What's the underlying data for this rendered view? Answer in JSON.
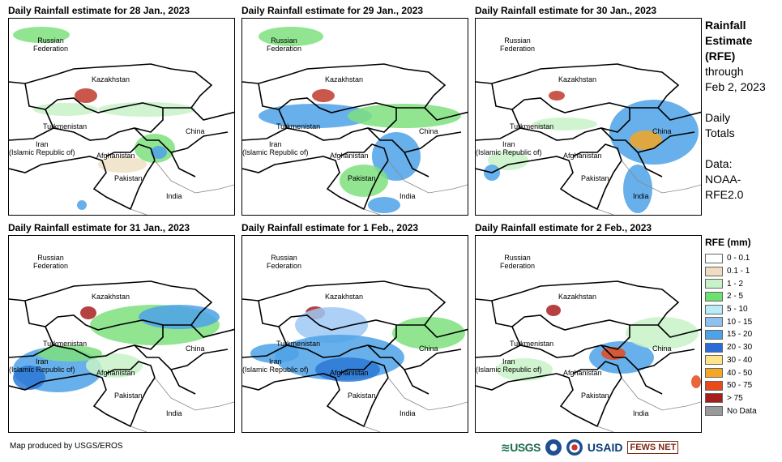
{
  "panels": [
    {
      "title": "Daily Rainfall estimate for 28 Jan., 2023",
      "rain": [
        {
          "cx": 40,
          "cy": 20,
          "rx": 35,
          "ry": 10,
          "c": "#7ee07e"
        },
        {
          "cx": 95,
          "cy": 95,
          "rx": 14,
          "ry": 9,
          "c": "#c0392b"
        },
        {
          "cx": 70,
          "cy": 112,
          "rx": 40,
          "ry": 8,
          "c": "#c8f2c8"
        },
        {
          "cx": 170,
          "cy": 112,
          "rx": 60,
          "ry": 9,
          "c": "#c8f2c8"
        },
        {
          "cx": 180,
          "cy": 160,
          "rx": 25,
          "ry": 18,
          "c": "#7ee07e"
        },
        {
          "cx": 185,
          "cy": 165,
          "rx": 10,
          "ry": 8,
          "c": "#4ea2e8"
        },
        {
          "cx": 140,
          "cy": 180,
          "rx": 30,
          "ry": 10,
          "c": "#f0e0c4"
        },
        {
          "cx": 90,
          "cy": 230,
          "rx": 6,
          "ry": 6,
          "c": "#4ea2e8"
        }
      ]
    },
    {
      "title": "Daily Rainfall estimate for 29 Jan., 2023",
      "rain": [
        {
          "cx": 60,
          "cy": 22,
          "rx": 40,
          "ry": 12,
          "c": "#7ee07e"
        },
        {
          "cx": 100,
          "cy": 95,
          "rx": 14,
          "ry": 8,
          "c": "#c0392b"
        },
        {
          "cx": 90,
          "cy": 120,
          "rx": 70,
          "ry": 15,
          "c": "#4ea2e8"
        },
        {
          "cx": 200,
          "cy": 120,
          "rx": 70,
          "ry": 15,
          "c": "#7ee07e"
        },
        {
          "cx": 190,
          "cy": 170,
          "rx": 30,
          "ry": 30,
          "c": "#4ea2e8"
        },
        {
          "cx": 150,
          "cy": 200,
          "rx": 30,
          "ry": 20,
          "c": "#7ee07e"
        },
        {
          "cx": 175,
          "cy": 230,
          "rx": 20,
          "ry": 10,
          "c": "#4ea2e8"
        }
      ]
    },
    {
      "title": "Daily Rainfall estimate for 30 Jan., 2023",
      "rain": [
        {
          "cx": 100,
          "cy": 95,
          "rx": 10,
          "ry": 6,
          "c": "#c0392b"
        },
        {
          "cx": 110,
          "cy": 130,
          "rx": 40,
          "ry": 8,
          "c": "#c8f2c8"
        },
        {
          "cx": 220,
          "cy": 140,
          "rx": 55,
          "ry": 40,
          "c": "#4ea2e8"
        },
        {
          "cx": 210,
          "cy": 150,
          "rx": 20,
          "ry": 12,
          "c": "#f5a623"
        },
        {
          "cx": 200,
          "cy": 210,
          "rx": 18,
          "ry": 30,
          "c": "#4ea2e8"
        },
        {
          "cx": 40,
          "cy": 175,
          "rx": 25,
          "ry": 12,
          "c": "#c8f2c8"
        },
        {
          "cx": 20,
          "cy": 190,
          "rx": 10,
          "ry": 10,
          "c": "#4ea2e8"
        }
      ]
    },
    {
      "title": "Daily Rainfall estimate for 31 Jan., 2023",
      "rain": [
        {
          "cx": 98,
          "cy": 95,
          "rx": 10,
          "ry": 8,
          "c": "#a82020"
        },
        {
          "cx": 60,
          "cy": 165,
          "rx": 55,
          "ry": 28,
          "c": "#4ea2e8"
        },
        {
          "cx": 25,
          "cy": 175,
          "rx": 20,
          "ry": 15,
          "c": "#2c78d6"
        },
        {
          "cx": 180,
          "cy": 110,
          "rx": 80,
          "ry": 25,
          "c": "#7ee07e"
        },
        {
          "cx": 210,
          "cy": 100,
          "rx": 50,
          "ry": 15,
          "c": "#4ea2e8"
        },
        {
          "cx": 130,
          "cy": 160,
          "rx": 35,
          "ry": 15,
          "c": "#c8f2c8"
        },
        {
          "cx": 75,
          "cy": 145,
          "rx": 40,
          "ry": 10,
          "c": "#7ee07e"
        }
      ]
    },
    {
      "title": "Daily Rainfall estimate for 1 Feb., 2023",
      "rain": [
        {
          "cx": 90,
          "cy": 95,
          "rx": 12,
          "ry": 8,
          "c": "#a82020"
        },
        {
          "cx": 110,
          "cy": 110,
          "rx": 45,
          "ry": 22,
          "c": "#9dc8f5"
        },
        {
          "cx": 120,
          "cy": 150,
          "rx": 80,
          "ry": 28,
          "c": "#4ea2e8"
        },
        {
          "cx": 130,
          "cy": 165,
          "rx": 40,
          "ry": 15,
          "c": "#2c78d6"
        },
        {
          "cx": 230,
          "cy": 120,
          "rx": 45,
          "ry": 20,
          "c": "#7ee07e"
        },
        {
          "cx": 40,
          "cy": 145,
          "rx": 30,
          "ry": 12,
          "c": "#4ea2e8"
        }
      ]
    },
    {
      "title": "Daily Rainfall estimate for 2 Feb., 2023",
      "rain": [
        {
          "cx": 96,
          "cy": 92,
          "rx": 9,
          "ry": 7,
          "c": "#a82020"
        },
        {
          "cx": 180,
          "cy": 150,
          "rx": 40,
          "ry": 20,
          "c": "#4ea2e8"
        },
        {
          "cx": 170,
          "cy": 145,
          "rx": 15,
          "ry": 8,
          "c": "#e84a1a"
        },
        {
          "cx": 230,
          "cy": 120,
          "rx": 45,
          "ry": 20,
          "c": "#c8f2c8"
        },
        {
          "cx": 60,
          "cy": 165,
          "rx": 35,
          "ry": 14,
          "c": "#c8f2c8"
        },
        {
          "cx": 272,
          "cy": 180,
          "rx": 6,
          "ry": 8,
          "c": "#e84a1a"
        }
      ]
    }
  ],
  "map_labels": {
    "russia": "Russian\nFederation",
    "kazakhstan": "Kazakhstan",
    "turkmenistan": "Turkmenistan",
    "china": "China",
    "iran": "Iran\n(Islamic Republic of)",
    "afghanistan": "Afghanistan",
    "pakistan": "Pakistan",
    "india": "India"
  },
  "sidebar": {
    "title_line1": "Rainfall",
    "title_line2": "Estimate",
    "title_line3": "(RFE)",
    "through": "through",
    "date": "Feb 2, 2023",
    "daily": "Daily",
    "totals": "Totals",
    "data_label": "Data:",
    "data_src1": "NOAA-",
    "data_src2": "RFE2.0"
  },
  "legend": {
    "title": "RFE (mm)",
    "items": [
      {
        "label": "0 - 0.1",
        "color": "#ffffff"
      },
      {
        "label": "0.1 - 1",
        "color": "#f0dcc0"
      },
      {
        "label": "1 - 2",
        "color": "#c8f2c8"
      },
      {
        "label": "2 - 5",
        "color": "#6ee06e"
      },
      {
        "label": "5 - 10",
        "color": "#b8ecf8"
      },
      {
        "label": "10 - 15",
        "color": "#8ec0f0"
      },
      {
        "label": "15 - 20",
        "color": "#4ea2e8"
      },
      {
        "label": "20 - 30",
        "color": "#2c6cd8"
      },
      {
        "label": "30 - 40",
        "color": "#fce48a"
      },
      {
        "label": "40 - 50",
        "color": "#f5a623"
      },
      {
        "label": "50 - 75",
        "color": "#e84a1a"
      },
      {
        "label": "> 75",
        "color": "#a81c1c"
      },
      {
        "label": "No Data",
        "color": "#999999"
      }
    ]
  },
  "footer": {
    "credit": "Map produced by USGS/EROS",
    "logo_usgs": "≋USGS",
    "logo_usaid": "USAID",
    "logo_fews": "FEWS NET"
  }
}
